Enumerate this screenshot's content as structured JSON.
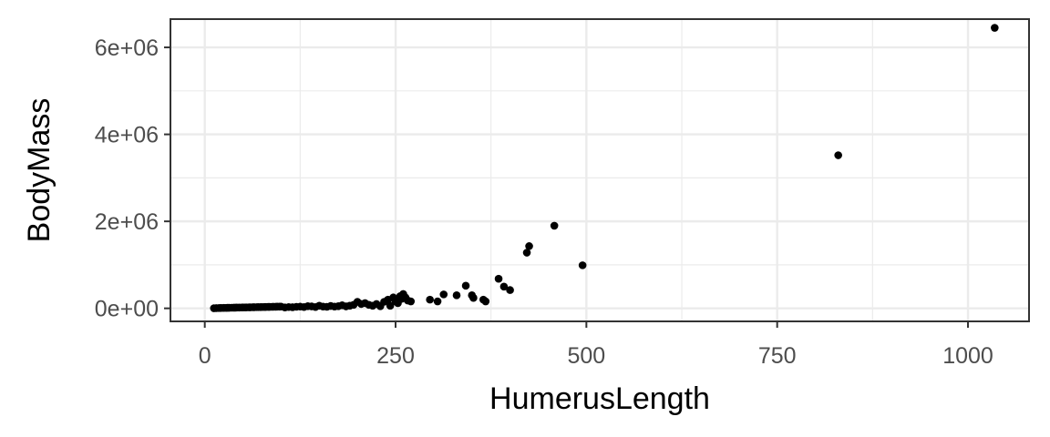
{
  "chart_data": {
    "type": "scatter",
    "title": "",
    "xlabel": "HumerusLength",
    "ylabel": "BodyMass",
    "xlim": [
      -45,
      1080
    ],
    "ylim": [
      -300000,
      6650000
    ],
    "x_ticks": [
      0,
      250,
      500,
      750,
      1000
    ],
    "x_tick_labels": [
      "0",
      "250",
      "500",
      "750",
      "1000"
    ],
    "x_minor_ticks": [
      125,
      375,
      625,
      875
    ],
    "y_ticks": [
      0,
      2000000,
      4000000,
      6000000
    ],
    "y_tick_labels": [
      "0e+00",
      "2e+06",
      "4e+06",
      "6e+06"
    ],
    "y_minor_ticks": [
      1000000,
      3000000,
      5000000
    ],
    "grid": true,
    "legend": "none",
    "point_color": "#000000",
    "series": [
      {
        "points": [
          [
            12,
            3000
          ],
          [
            15,
            5000
          ],
          [
            18,
            6000
          ],
          [
            20,
            8000
          ],
          [
            22,
            9000
          ],
          [
            25,
            10000
          ],
          [
            28,
            11000
          ],
          [
            30,
            12000
          ],
          [
            32,
            13000
          ],
          [
            35,
            14000
          ],
          [
            38,
            15000
          ],
          [
            40,
            16000
          ],
          [
            42,
            17000
          ],
          [
            45,
            18000
          ],
          [
            48,
            19000
          ],
          [
            50,
            20000
          ],
          [
            53,
            21000
          ],
          [
            55,
            22000
          ],
          [
            58,
            23000
          ],
          [
            60,
            24000
          ],
          [
            63,
            25000
          ],
          [
            65,
            26000
          ],
          [
            68,
            27000
          ],
          [
            70,
            28000
          ],
          [
            73,
            29000
          ],
          [
            75,
            30000
          ],
          [
            78,
            31000
          ],
          [
            80,
            32000
          ],
          [
            83,
            33000
          ],
          [
            85,
            34000
          ],
          [
            88,
            35000
          ],
          [
            90,
            36000
          ],
          [
            93,
            37000
          ],
          [
            95,
            38000
          ],
          [
            98,
            39000
          ],
          [
            100,
            40000
          ],
          [
            105,
            20000
          ],
          [
            110,
            30000
          ],
          [
            115,
            25000
          ],
          [
            120,
            35000
          ],
          [
            125,
            40000
          ],
          [
            130,
            30000
          ],
          [
            135,
            50000
          ],
          [
            140,
            45000
          ],
          [
            145,
            30000
          ],
          [
            150,
            60000
          ],
          [
            155,
            40000
          ],
          [
            160,
            35000
          ],
          [
            165,
            55000
          ],
          [
            170,
            40000
          ],
          [
            175,
            50000
          ],
          [
            180,
            70000
          ],
          [
            185,
            45000
          ],
          [
            190,
            60000
          ],
          [
            195,
            80000
          ],
          [
            200,
            150000
          ],
          [
            205,
            100000
          ],
          [
            210,
            120000
          ],
          [
            215,
            80000
          ],
          [
            220,
            60000
          ],
          [
            225,
            100000
          ],
          [
            230,
            50000
          ],
          [
            235,
            150000
          ],
          [
            240,
            200000
          ],
          [
            243,
            60000
          ],
          [
            247,
            250000
          ],
          [
            250,
            160000
          ],
          [
            253,
            120000
          ],
          [
            256,
            280000
          ],
          [
            258,
            220000
          ],
          [
            260,
            330000
          ],
          [
            263,
            250000
          ],
          [
            266,
            180000
          ],
          [
            270,
            160000
          ],
          [
            295,
            200000
          ],
          [
            305,
            160000
          ],
          [
            313,
            320000
          ],
          [
            330,
            300000
          ],
          [
            342,
            520000
          ],
          [
            350,
            300000
          ],
          [
            352,
            240000
          ],
          [
            365,
            200000
          ],
          [
            368,
            160000
          ],
          [
            385,
            680000
          ],
          [
            392,
            500000
          ],
          [
            400,
            420000
          ],
          [
            422,
            1280000
          ],
          [
            425,
            1430000
          ],
          [
            458,
            1900000
          ],
          [
            495,
            990000
          ],
          [
            830,
            3520000
          ],
          [
            1035,
            6450000
          ]
        ]
      }
    ]
  }
}
